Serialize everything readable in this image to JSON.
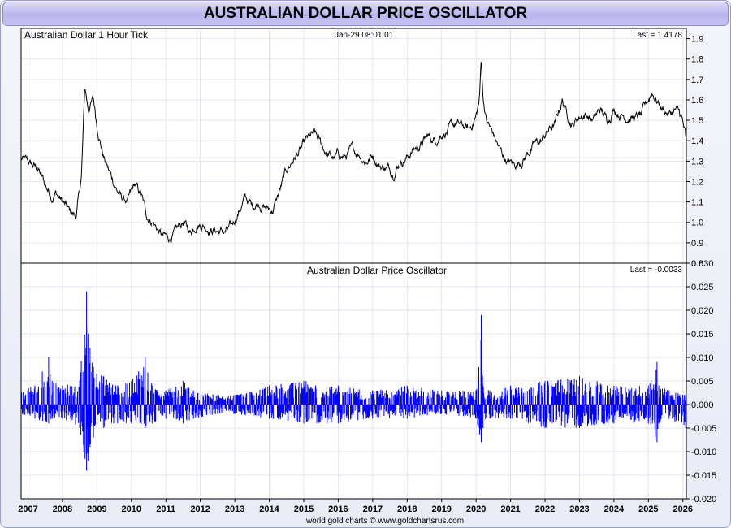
{
  "page": {
    "title": "AUSTRALIAN DOLLAR PRICE OSCILLATOR",
    "footer": "world gold charts © www.goldchartsrus.com"
  },
  "colors": {
    "price_line": "#000000",
    "oscillator_line": "#0000ff",
    "zero_line": "#ff6060",
    "grid": "#e3e6f0"
  },
  "chart_data": [
    {
      "type": "line",
      "title": "Australian Dollar 1 Hour Tick",
      "timestamp": "Jan-29  08:01:01",
      "last_label": "Last = 1.4178",
      "ylim": [
        0.8,
        1.95
      ],
      "yticks": [
        "1.9",
        "1.8",
        "1.7",
        "1.6",
        "1.5",
        "1.4",
        "1.3",
        "1.2",
        "1.1",
        "1.0",
        "0.9",
        "0.8"
      ],
      "ytick_values": [
        1.9,
        1.8,
        1.7,
        1.6,
        1.5,
        1.4,
        1.3,
        1.2,
        1.1,
        1.0,
        0.9,
        0.8
      ],
      "grid": true,
      "series": [
        {
          "x": [
            2006.8,
            2007.0,
            2007.3,
            2007.5,
            2007.7,
            2007.8,
            2008.0,
            2008.2,
            2008.4,
            2008.55,
            2008.65,
            2008.75,
            2008.8,
            2008.9,
            2009.0,
            2009.1,
            2009.2,
            2009.35,
            2009.5,
            2009.7,
            2009.9,
            2010.1,
            2010.3,
            2010.45,
            2010.6,
            2010.75,
            2010.9,
            2011.1,
            2011.3,
            2011.5,
            2011.7,
            2011.9,
            2012.1,
            2012.3,
            2012.5,
            2012.7,
            2012.9,
            2013.1,
            2013.3,
            2013.5,
            2013.7,
            2013.9,
            2014.1,
            2014.3,
            2014.5,
            2014.7,
            2014.9,
            2015.1,
            2015.3,
            2015.5,
            2015.7,
            2015.9,
            2016.0,
            2016.2,
            2016.4,
            2016.6,
            2016.8,
            2017.0,
            2017.2,
            2017.4,
            2017.6,
            2017.8,
            2018.0,
            2018.2,
            2018.4,
            2018.6,
            2018.8,
            2019.0,
            2019.2,
            2019.4,
            2019.6,
            2019.8,
            2020.0,
            2020.1,
            2020.15,
            2020.2,
            2020.3,
            2020.5,
            2020.7,
            2020.9,
            2021.1,
            2021.3,
            2021.5,
            2021.7,
            2021.9,
            2022.1,
            2022.3,
            2022.5,
            2022.6,
            2022.8,
            2023.0,
            2023.2,
            2023.4,
            2023.6,
            2023.8,
            2024.0,
            2024.2,
            2024.4,
            2024.6,
            2024.8,
            2025.0,
            2025.1,
            2025.25,
            2025.4,
            2025.6,
            2025.8,
            2025.95,
            2026.08
          ],
          "y": [
            1.31,
            1.29,
            1.26,
            1.18,
            1.13,
            1.15,
            1.1,
            1.05,
            1.03,
            1.22,
            1.66,
            1.55,
            1.58,
            1.6,
            1.48,
            1.4,
            1.32,
            1.25,
            1.19,
            1.12,
            1.1,
            1.18,
            1.12,
            1.03,
            1.01,
            0.97,
            0.93,
            0.92,
            0.95,
            1.0,
            0.95,
            1.0,
            0.99,
            0.97,
            0.96,
            0.95,
            0.97,
            1.05,
            1.12,
            1.08,
            1.1,
            1.07,
            1.06,
            1.15,
            1.25,
            1.31,
            1.35,
            1.4,
            1.43,
            1.38,
            1.33,
            1.31,
            1.33,
            1.32,
            1.35,
            1.34,
            1.3,
            1.33,
            1.28,
            1.27,
            1.25,
            1.3,
            1.32,
            1.36,
            1.38,
            1.42,
            1.4,
            1.44,
            1.45,
            1.48,
            1.47,
            1.45,
            1.52,
            1.6,
            1.81,
            1.62,
            1.5,
            1.43,
            1.35,
            1.3,
            1.28,
            1.3,
            1.34,
            1.38,
            1.4,
            1.45,
            1.48,
            1.6,
            1.55,
            1.48,
            1.52,
            1.53,
            1.5,
            1.55,
            1.5,
            1.56,
            1.53,
            1.52,
            1.51,
            1.52,
            1.6,
            1.64,
            1.6,
            1.56,
            1.53,
            1.55,
            1.52,
            1.42
          ]
        }
      ]
    },
    {
      "type": "line",
      "title": "Australian Dollar Price Oscillator",
      "last_label": "Last = -0.0033",
      "ylim": [
        -0.02,
        0.03
      ],
      "yticks": [
        "0.030",
        "0.025",
        "0.020",
        "0.015",
        "0.010",
        "0.005",
        "0.000",
        "-0.005",
        "-0.010",
        "-0.015",
        "-0.020"
      ],
      "ytick_values": [
        0.03,
        0.025,
        0.02,
        0.015,
        0.01,
        0.005,
        0.0,
        -0.005,
        -0.01,
        -0.015,
        -0.02
      ],
      "grid": true,
      "series": [
        {
          "x": [
            2006.8,
            2007.2,
            2007.6,
            2007.7,
            2008.0,
            2008.5,
            2008.7,
            2008.75,
            2008.8,
            2008.9,
            2009.2,
            2009.6,
            2010.0,
            2010.4,
            2010.6,
            2011.0,
            2011.5,
            2011.8,
            2012.5,
            2013.0,
            2014.0,
            2015.0,
            2016.0,
            2017.0,
            2018.0,
            2019.0,
            2020.0,
            2020.15,
            2020.2,
            2020.4,
            2021.0,
            2022.0,
            2023.0,
            2024.0,
            2025.0,
            2025.25,
            2025.3,
            2025.6,
            2026.08
          ],
          "y_max": [
            0.003,
            0.004,
            0.01,
            0.005,
            0.004,
            0.005,
            0.024,
            0.015,
            0.012,
            0.008,
            0.006,
            0.004,
            0.005,
            0.01,
            0.004,
            0.003,
            0.005,
            0.003,
            0.002,
            0.002,
            0.004,
            0.005,
            0.004,
            0.003,
            0.004,
            0.003,
            0.003,
            0.019,
            0.004,
            0.003,
            0.004,
            0.005,
            0.006,
            0.004,
            0.004,
            0.009,
            0.004,
            0.003,
            0.002
          ],
          "y_min": [
            -0.002,
            -0.003,
            -0.004,
            -0.003,
            -0.003,
            -0.005,
            -0.014,
            -0.012,
            -0.009,
            -0.007,
            -0.005,
            -0.004,
            -0.004,
            -0.005,
            -0.004,
            -0.003,
            -0.004,
            -0.003,
            -0.002,
            -0.002,
            -0.003,
            -0.004,
            -0.004,
            -0.003,
            -0.003,
            -0.002,
            -0.003,
            -0.008,
            -0.005,
            -0.003,
            -0.003,
            -0.005,
            -0.005,
            -0.004,
            -0.004,
            -0.008,
            -0.004,
            -0.003,
            -0.005
          ]
        }
      ]
    }
  ],
  "x_axis": {
    "labels": [
      "2007",
      "2008",
      "2009",
      "2010",
      "2011",
      "2012",
      "2013",
      "2014",
      "2015",
      "2016",
      "2017",
      "2018",
      "2019",
      "2020",
      "2021",
      "2022",
      "2023",
      "2024",
      "2025",
      "2026"
    ],
    "values": [
      2007,
      2008,
      2009,
      2010,
      2011,
      2012,
      2013,
      2014,
      2015,
      2016,
      2017,
      2018,
      2019,
      2020,
      2021,
      2022,
      2023,
      2024,
      2025,
      2026
    ],
    "xlim": [
      2006.8,
      2026.1
    ]
  }
}
